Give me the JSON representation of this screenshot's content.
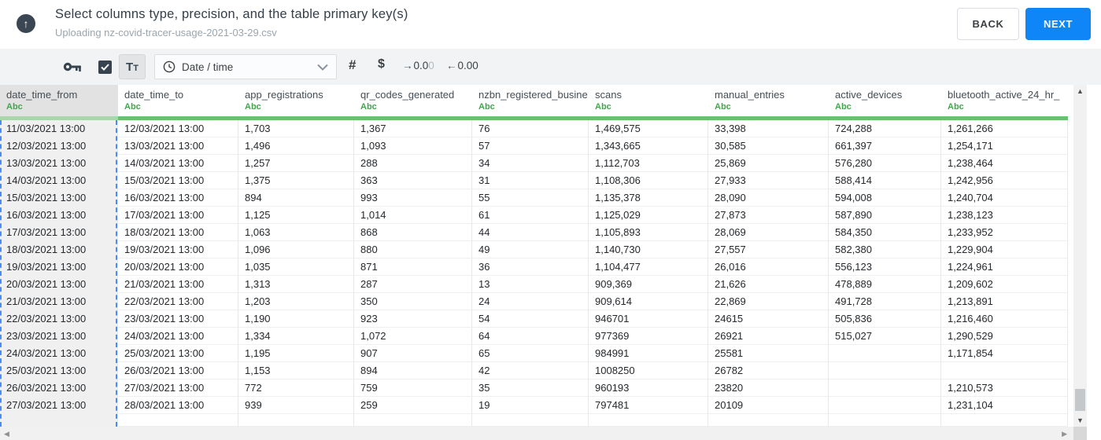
{
  "header": {
    "title": "Select columns type, precision, and the table primary key(s)",
    "subtitle": "Uploading nz-covid-tracer-usage-2021-03-29.csv",
    "back_label": "BACK",
    "next_label": "NEXT"
  },
  "toolbar": {
    "key_icon": "primary-key-icon",
    "checkbox_checked": true,
    "text_type_label": "Tt",
    "type_dropdown_value": "Date / time",
    "numeric_icon": "#",
    "currency_icon": "$",
    "decimal_right": {
      "glyph": "→",
      "main": "0.0",
      "faded": "0"
    },
    "decimal_left": {
      "glyph": "←",
      "main": "0.00",
      "faded": ""
    }
  },
  "table": {
    "type_label": "Abc",
    "columns": [
      {
        "name": "date_time_from",
        "selected": true
      },
      {
        "name": "date_time_to",
        "selected": false
      },
      {
        "name": "app_registrations",
        "selected": false
      },
      {
        "name": "qr_codes_generated",
        "selected": false
      },
      {
        "name": "nzbn_registered_busine",
        "selected": false
      },
      {
        "name": "scans",
        "selected": false
      },
      {
        "name": "manual_entries",
        "selected": false
      },
      {
        "name": "active_devices",
        "selected": false
      },
      {
        "name": "bluetooth_active_24_hr_",
        "selected": false
      }
    ],
    "rows": [
      [
        "11/03/2021 13:00",
        "12/03/2021 13:00",
        "1,703",
        "1,367",
        "76",
        "1,469,575",
        "33,398",
        "724,288",
        "1,261,266"
      ],
      [
        "12/03/2021 13:00",
        "13/03/2021 13:00",
        "1,496",
        "1,093",
        "57",
        "1,343,665",
        "30,585",
        "661,397",
        "1,254,171"
      ],
      [
        "13/03/2021 13:00",
        "14/03/2021 13:00",
        "1,257",
        "288",
        "34",
        "1,112,703",
        "25,869",
        "576,280",
        "1,238,464"
      ],
      [
        "14/03/2021 13:00",
        "15/03/2021 13:00",
        "1,375",
        "363",
        "31",
        "1,108,306",
        "27,933",
        "588,414",
        "1,242,956"
      ],
      [
        "15/03/2021 13:00",
        "16/03/2021 13:00",
        "894",
        "993",
        "55",
        "1,135,378",
        "28,090",
        "594,008",
        "1,240,704"
      ],
      [
        "16/03/2021 13:00",
        "17/03/2021 13:00",
        "1,125",
        "1,014",
        "61",
        "1,125,029",
        "27,873",
        "587,890",
        "1,238,123"
      ],
      [
        "17/03/2021 13:00",
        "18/03/2021 13:00",
        "1,063",
        "868",
        "44",
        "1,105,893",
        "28,069",
        "584,350",
        "1,233,952"
      ],
      [
        "18/03/2021 13:00",
        "19/03/2021 13:00",
        "1,096",
        "880",
        "49",
        "1,140,730",
        "27,557",
        "582,380",
        "1,229,904"
      ],
      [
        "19/03/2021 13:00",
        "20/03/2021 13:00",
        "1,035",
        "871",
        "36",
        "1,104,477",
        "26,016",
        "556,123",
        "1,224,961"
      ],
      [
        "20/03/2021 13:00",
        "21/03/2021 13:00",
        "1,313",
        "287",
        "13",
        "909,369",
        "21,626",
        "478,889",
        "1,209,602"
      ],
      [
        "21/03/2021 13:00",
        "22/03/2021 13:00",
        "1,203",
        "350",
        "24",
        "909,614",
        "22,869",
        "491,728",
        "1,213,891"
      ],
      [
        "22/03/2021 13:00",
        "23/03/2021 13:00",
        "1,190",
        "923",
        "54",
        "946701",
        "24615",
        "505,836",
        "1,216,460"
      ],
      [
        "23/03/2021 13:00",
        "24/03/2021 13:00",
        "1,334",
        "1,072",
        "64",
        "977369",
        "26921",
        "515,027",
        "1,290,529"
      ],
      [
        "24/03/2021 13:00",
        "25/03/2021 13:00",
        "1,195",
        "907",
        "65",
        "984991",
        "25581",
        "",
        "1,171,854"
      ],
      [
        "25/03/2021 13:00",
        "26/03/2021 13:00",
        "1,153",
        "894",
        "42",
        "1008250",
        "26782",
        "",
        ""
      ],
      [
        "26/03/2021 13:00",
        "27/03/2021 13:00",
        "772",
        "759",
        "35",
        "960193",
        "23820",
        "",
        "1,210,573"
      ],
      [
        "27/03/2021 13:00",
        "28/03/2021 13:00",
        "939",
        "259",
        "19",
        "797481",
        "20109",
        "",
        "1,231,104"
      ]
    ]
  },
  "colors": {
    "accent_blue": "#0e86f7",
    "selection_blue": "#4a8cf7",
    "type_green": "#3fa74a",
    "bar_green": "#69c06d",
    "bar_green_muted": "#a9d6ab"
  }
}
